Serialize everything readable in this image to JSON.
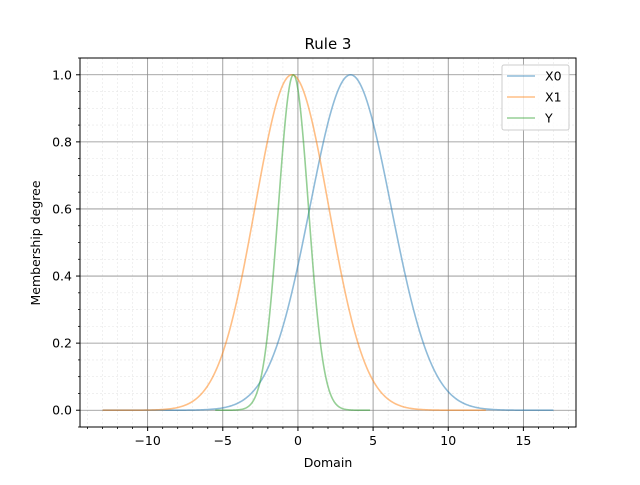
{
  "chart_data": {
    "type": "line",
    "title": "Rule 3",
    "xlabel": "Domain",
    "ylabel": "Membership degree",
    "xlim": [
      -14.5,
      18.5
    ],
    "ylim": [
      -0.05,
      1.05
    ],
    "x_ticks": [
      -10,
      -5,
      0,
      5,
      10,
      15
    ],
    "x_tick_labels": [
      "−10",
      "−5",
      "0",
      "5",
      "10",
      "15"
    ],
    "y_ticks": [
      0.0,
      0.2,
      0.4,
      0.6,
      0.8,
      1.0
    ],
    "y_tick_labels": [
      "0.0",
      "0.2",
      "0.4",
      "0.6",
      "0.8",
      "1.0"
    ],
    "grid": true,
    "minor_grid": true,
    "legend_position": "top-right",
    "series": [
      {
        "name": "X0",
        "color": "#1f77b4",
        "shape": "gaussian",
        "center": 3.5,
        "sigma": 2.7,
        "x_range": [
          -13,
          17
        ]
      },
      {
        "name": "X1",
        "color": "#ff7f0e",
        "shape": "gaussian",
        "center": -0.4,
        "sigma": 2.45,
        "x_range": [
          -13,
          12.5
        ]
      },
      {
        "name": "Y",
        "color": "#2ca02c",
        "shape": "gaussian",
        "center": -0.3,
        "sigma": 1.0,
        "x_range": [
          -5.5,
          4.8
        ]
      }
    ]
  }
}
